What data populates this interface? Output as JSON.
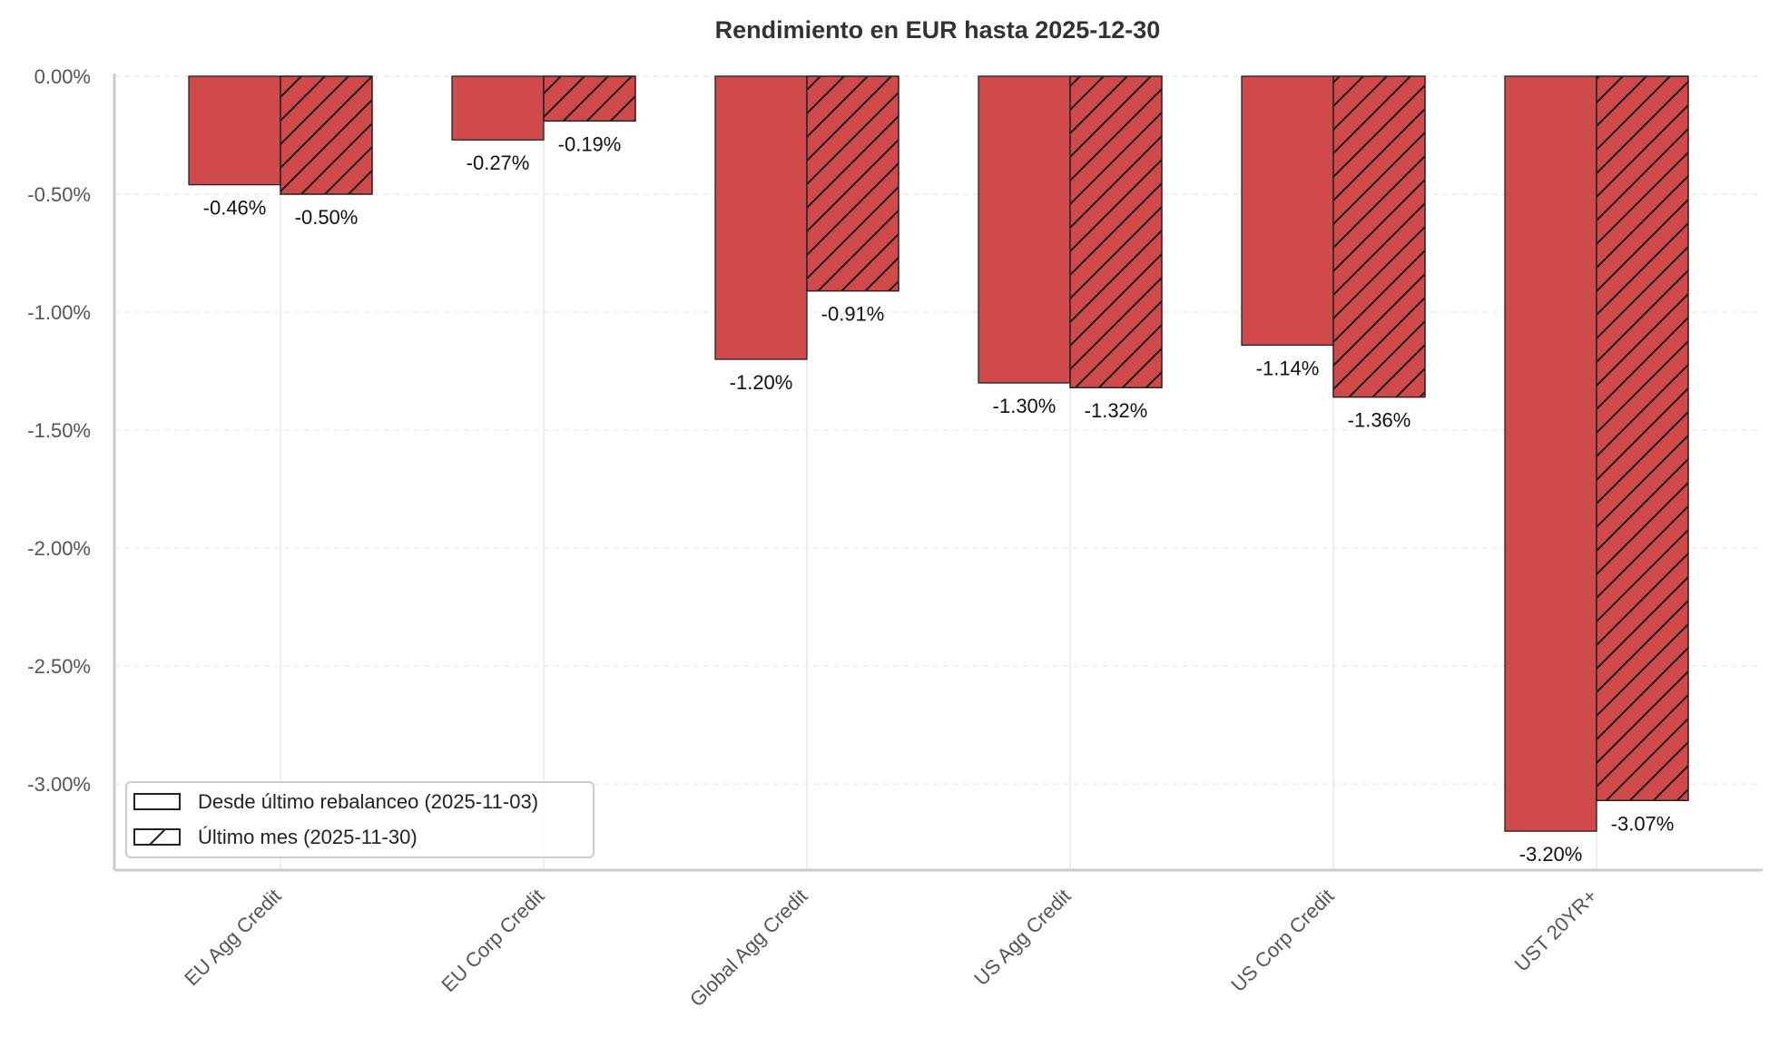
{
  "chart_data": {
    "type": "bar",
    "title": "Rendimiento en EUR hasta 2025-12-30",
    "xlabel": "",
    "ylabel": "",
    "categories": [
      "EU Agg Credit",
      "EU Corp Credit",
      "Global Agg Credit",
      "US Agg Credit",
      "US Corp Credit",
      "UST 20YR+"
    ],
    "series": [
      {
        "name": "Desde último rebalanceo (2025-11-03)",
        "values": [
          -0.46,
          -0.27,
          -1.2,
          -1.3,
          -1.14,
          -3.2
        ],
        "labels": [
          "-0.46%",
          "-0.27%",
          "-1.20%",
          "-1.30%",
          "-1.14%",
          "-3.20%"
        ],
        "hatch": false
      },
      {
        "name": "Último mes (2025-11-30)",
        "values": [
          -0.5,
          -0.19,
          -0.91,
          -1.32,
          -1.36,
          -3.07
        ],
        "labels": [
          "-0.50%",
          "-0.19%",
          "-0.91%",
          "-1.32%",
          "-1.36%",
          "-3.07%"
        ],
        "hatch": true
      }
    ],
    "yticks": [
      0,
      -0.5,
      -1,
      -1.5,
      -2,
      -2.5,
      -3
    ],
    "ytick_labels": [
      "0.00%",
      "-0.50%",
      "-1.00%",
      "-1.50%",
      "-2.00%",
      "-2.50%",
      "-3.00%"
    ],
    "ylim": [
      -3.365,
      0
    ],
    "grid": true,
    "legend_position": "bottom-left",
    "colors": {
      "bar": "#d0494b",
      "edge": "#222222",
      "tick_text": "#555555"
    }
  }
}
